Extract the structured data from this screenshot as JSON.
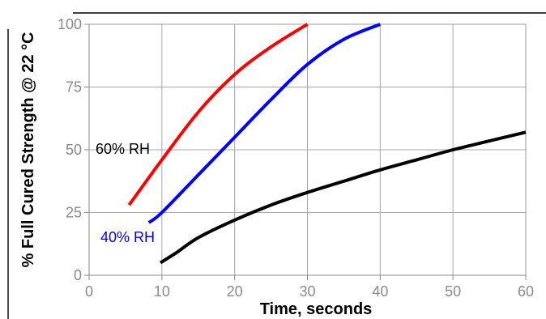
{
  "chart_data": {
    "type": "line",
    "xlabel": "Time, seconds",
    "ylabel": "% Full Cured Strength @ 22 °C",
    "xlim": [
      0,
      60
    ],
    "ylim": [
      0,
      100
    ],
    "x_ticks": [
      0,
      10,
      20,
      30,
      40,
      50,
      60
    ],
    "y_ticks": [
      0,
      25,
      50,
      75,
      100
    ],
    "grid": true,
    "series": [
      {
        "name": "60% RH",
        "color": "#ff0000",
        "x": [
          5.5,
          10,
          15,
          20,
          25,
          30
        ],
        "y": [
          28,
          46,
          65,
          80,
          91,
          100
        ]
      },
      {
        "name": "40% RH",
        "color": "#0000ff",
        "x": [
          8.2,
          10,
          15,
          20,
          25,
          30,
          35,
          40
        ],
        "y": [
          21,
          25,
          40,
          55,
          70,
          84,
          94,
          100
        ]
      },
      {
        "color": "#000000",
        "x": [
          9.8,
          12,
          15,
          20,
          25,
          30,
          35,
          40,
          45,
          50,
          55,
          60
        ],
        "y": [
          5,
          9,
          15,
          22,
          28,
          33,
          37.5,
          42,
          46,
          50,
          53.5,
          57
        ]
      }
    ],
    "annotations": [
      {
        "text": "60% RH",
        "color": "#000000"
      },
      {
        "text": "40% RH",
        "color": "#0000ff"
      }
    ]
  }
}
